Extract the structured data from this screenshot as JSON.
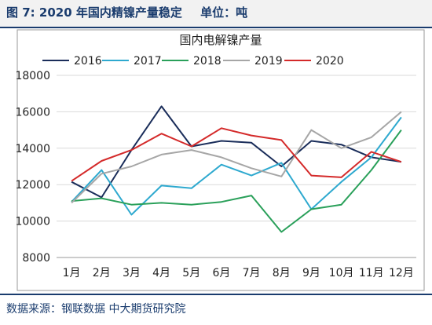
{
  "figure": {
    "label": "图 7:",
    "title": "2020 年国内精镍产量稳定",
    "unit": "单位：吨"
  },
  "source": "数据来源：钢联数据 中大期货研究院",
  "chart_data": {
    "type": "line",
    "title": "国内电解镍产量",
    "categories": [
      "1月",
      "2月",
      "3月",
      "4月",
      "5月",
      "6月",
      "7月",
      "8月",
      "9月",
      "10月",
      "11月",
      "12月"
    ],
    "ylim": [
      8000,
      18000
    ],
    "yticks": [
      8000,
      10000,
      12000,
      14000,
      16000,
      18000
    ],
    "grid": true,
    "legend_position": "top",
    "series": [
      {
        "name": "2016",
        "color": "#1a2d5a",
        "values": [
          12150,
          11300,
          13900,
          16300,
          14100,
          14400,
          14300,
          13000,
          14400,
          14200,
          13500,
          13250
        ]
      },
      {
        "name": "2017",
        "color": "#2ea9cf",
        "values": [
          11050,
          12800,
          10350,
          11950,
          11800,
          13100,
          12500,
          13200,
          10650,
          12150,
          13500,
          15700
        ]
      },
      {
        "name": "2018",
        "color": "#2aa05a",
        "values": [
          11100,
          11250,
          10900,
          11000,
          10900,
          11050,
          11400,
          9400,
          10650,
          10900,
          12800,
          15000
        ]
      },
      {
        "name": "2019",
        "color": "#a6a6a6",
        "values": [
          11000,
          12600,
          13000,
          13650,
          13900,
          13500,
          12900,
          12450,
          15000,
          14000,
          14600,
          16000
        ]
      },
      {
        "name": "2020",
        "color": "#d42a2a",
        "values": [
          12200,
          13300,
          13900,
          14800,
          14100,
          15100,
          14700,
          14450,
          12500,
          12400,
          13800,
          13250
        ]
      }
    ]
  }
}
